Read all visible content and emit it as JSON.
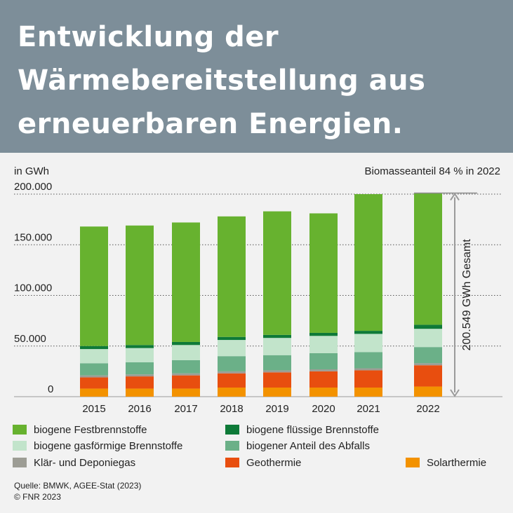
{
  "header": {
    "title_line1": "Entwicklung der",
    "title_line2": "Wärmebereitstellung aus",
    "title_line3": "erneuerbaren Energien."
  },
  "chart_data": {
    "type": "bar",
    "stacked": true,
    "unit_label": "in GWh",
    "annotation_top_right": "Biomasseanteil 84 % in 2022",
    "total_annotation": "200.549 GWh Gesamt",
    "categories": [
      "2015",
      "2016",
      "2017",
      "2018",
      "2019",
      "2020",
      "2021",
      "2022"
    ],
    "ylim": [
      0,
      200000
    ],
    "yticks": [
      0,
      50000,
      100000,
      150000,
      200000
    ],
    "ytick_labels": [
      "0",
      "50.000",
      "100.000",
      "150.000",
      "200.000"
    ],
    "grid": true,
    "series": [
      {
        "name": "Solarthermie",
        "color": "#f39200",
        "values": [
          8000,
          8000,
          8000,
          9000,
          9000,
          9000,
          9000,
          10000
        ]
      },
      {
        "name": "Geothermie",
        "color": "#e84e0f",
        "values": [
          11000,
          12000,
          13000,
          14000,
          15000,
          16000,
          17000,
          21000
        ]
      },
      {
        "name": "Klär- und Deponiegas",
        "color": "#9d9d95",
        "values": [
          2000,
          2000,
          2000,
          2000,
          2000,
          2000,
          2000,
          2000
        ]
      },
      {
        "name": "biogener Anteil des Abfalls",
        "color": "#6bb088",
        "values": [
          12000,
          12000,
          13000,
          15000,
          15000,
          16000,
          16000,
          16000
        ]
      },
      {
        "name": "biogene gasförmige Brennstoffe",
        "color": "#c2e4cb",
        "values": [
          14000,
          14000,
          15000,
          16000,
          17000,
          17000,
          18000,
          18000
        ]
      },
      {
        "name": "biogene flüssige Brennstoffe",
        "color": "#0e7a38",
        "values": [
          3000,
          3000,
          3000,
          3000,
          3000,
          3000,
          3000,
          4000
        ]
      },
      {
        "name": "biogene Festbrennstoffe",
        "color": "#67b22f",
        "values": [
          118000,
          118000,
          118000,
          119000,
          122000,
          118000,
          135000,
          130000
        ]
      }
    ]
  },
  "legend": [
    {
      "label": "biogene Festbrennstoffe",
      "color": "#67b22f"
    },
    {
      "label": "biogene flüssige Brennstoffe",
      "color": "#0e7a38"
    },
    {
      "label": "biogene gasförmige Brennstoffe",
      "color": "#c2e4cb"
    },
    {
      "label": "biogener Anteil des Abfalls",
      "color": "#6bb088"
    },
    {
      "label": "Klär- und Deponiegas",
      "color": "#9d9d95"
    },
    {
      "label": "Geothermie",
      "color": "#e84e0f"
    },
    {
      "label": "Solarthermie",
      "color": "#f39200"
    }
  ],
  "source": {
    "line1": "Quelle: BMWK, AGEE-Stat (2023)",
    "line2": "© FNR 2023"
  }
}
